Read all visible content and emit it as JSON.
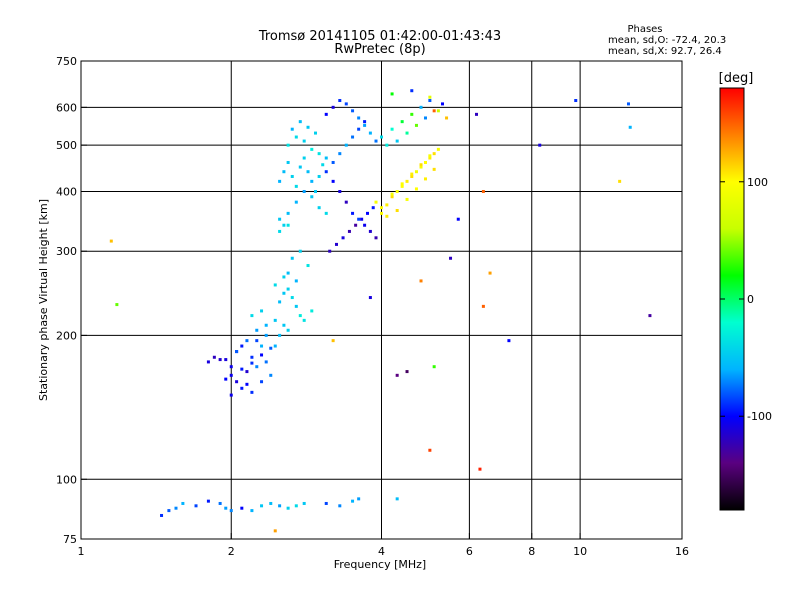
{
  "chart_data": {
    "type": "scatter",
    "title": "Tromsø 20141105 01:42:00-01:43:43",
    "subtitle": "RwPretec (8p)",
    "xlabel": "Frequency [MHz]",
    "ylabel": "Stationary phase Virtual Height [km]",
    "x_scale": "log",
    "y_scale": "log",
    "xlim": [
      1,
      16
    ],
    "ylim": [
      75,
      750
    ],
    "x_ticks": [
      1,
      2,
      4,
      6,
      8,
      10,
      16
    ],
    "y_ticks": [
      75,
      100,
      200,
      300,
      400,
      500,
      600,
      750
    ],
    "grid": true,
    "stats": {
      "heading": "Phases",
      "line_o": "mean, sd,O: -72.4, 20.3",
      "line_x": "mean, sd,X:  92.7, 26.4"
    },
    "colorbar": {
      "label": "[deg]",
      "min": -180,
      "max": 180,
      "ticks": [
        "100",
        "0",
        "-100"
      ],
      "tick_values": [
        100,
        0,
        -100
      ],
      "colors": [
        "#000000",
        "#5a0080",
        "#0000ff",
        "#00b4ff",
        "#00ffd0",
        "#00ff00",
        "#c8ff00",
        "#ffff00",
        "#ff8000",
        "#ff0000"
      ]
    },
    "series": [
      {
        "x": [
          1.95,
          2.0,
          2.05,
          2.1,
          2.15,
          2.2,
          2.25,
          2.3,
          2.35,
          2.4,
          2.0,
          2.05,
          2.1,
          2.15,
          2.2,
          2.25,
          2.3,
          2.35,
          1.9,
          1.85,
          1.8,
          1.95,
          2.0,
          2.1,
          2.2,
          2.3,
          2.4,
          2.45,
          2.5,
          2.55,
          2.6,
          2.05,
          2.15,
          2.25,
          2.35,
          2.45,
          2.2,
          2.3
        ],
        "y": [
          178,
          172,
          185,
          190,
          168,
          175,
          195,
          182,
          176,
          188,
          165,
          160,
          170,
          158,
          180,
          172,
          190,
          200,
          178,
          180,
          176,
          162,
          150,
          155,
          152,
          160,
          165,
          190,
          200,
          210,
          205,
          185,
          195,
          205,
          210,
          215,
          220,
          225
        ],
        "phase": [
          -110,
          -105,
          -100,
          -95,
          -115,
          -90,
          -85,
          -100,
          -75,
          -80,
          -105,
          -110,
          -95,
          -100,
          -90,
          -70,
          -60,
          -65,
          -115,
          -120,
          -110,
          -100,
          -105,
          -95,
          -90,
          -85,
          -70,
          -60,
          -55,
          -50,
          -45,
          -80,
          -75,
          -65,
          -60,
          -50,
          -40,
          -45
        ]
      },
      {
        "x": [
          2.5,
          2.55,
          2.6,
          2.65,
          2.7,
          2.75,
          2.8,
          2.7,
          2.6,
          2.55,
          2.45,
          2.65,
          2.75,
          2.85,
          2.9,
          2.5,
          2.6
        ],
        "y": [
          235,
          245,
          250,
          240,
          230,
          220,
          215,
          260,
          270,
          265,
          255,
          290,
          300,
          280,
          225,
          330,
          340
        ],
        "phase": [
          -55,
          -50,
          -45,
          -40,
          -50,
          -30,
          -35,
          -60,
          -55,
          -45,
          -40,
          -50,
          -45,
          -35,
          -30,
          -40,
          -35
        ]
      },
      {
        "x": [
          2.5,
          2.55,
          2.6,
          2.65,
          2.7,
          2.75,
          2.8,
          2.85,
          2.9,
          2.95,
          3.0,
          3.05,
          3.1,
          2.5,
          2.55,
          2.6,
          2.7,
          2.8,
          2.9,
          3.0,
          3.1,
          2.6,
          2.7,
          2.8,
          2.9,
          3.0,
          2.65,
          2.75,
          2.85,
          2.95
        ],
        "y": [
          420,
          440,
          460,
          430,
          410,
          450,
          470,
          440,
          420,
          400,
          430,
          455,
          470,
          350,
          340,
          360,
          380,
          400,
          390,
          370,
          360,
          500,
          520,
          510,
          490,
          480,
          540,
          560,
          545,
          530
        ],
        "phase": [
          -60,
          -55,
          -50,
          -45,
          -40,
          -50,
          -45,
          -55,
          -60,
          -50,
          -45,
          -40,
          -55,
          -50,
          -45,
          -55,
          -60,
          -65,
          -50,
          -45,
          -40,
          -35,
          -40,
          -45,
          -30,
          -35,
          -60,
          -55,
          -50,
          -45
        ]
      },
      {
        "x": [
          3.1,
          3.2,
          3.3,
          3.4,
          3.5,
          3.6,
          3.7,
          3.8,
          3.9,
          3.2,
          3.3,
          3.4,
          3.5,
          3.6,
          3.7,
          3.1,
          3.2,
          3.3,
          3.4,
          3.5,
          3.6,
          3.7,
          3.8,
          3.9,
          3.15,
          3.25,
          3.35,
          3.45,
          3.55,
          3.65,
          3.75,
          3.85
        ],
        "y": [
          440,
          420,
          400,
          380,
          360,
          350,
          340,
          330,
          320,
          460,
          480,
          500,
          520,
          540,
          560,
          580,
          600,
          620,
          610,
          590,
          570,
          550,
          530,
          510,
          300,
          310,
          320,
          330,
          340,
          350,
          360,
          370
        ],
        "phase": [
          -90,
          -100,
          -110,
          -120,
          -95,
          -85,
          -105,
          -115,
          -125,
          -80,
          -70,
          -60,
          -75,
          -85,
          -95,
          -100,
          -110,
          -90,
          -85,
          -80,
          -70,
          -65,
          -60,
          -75,
          -120,
          -115,
          -110,
          -125,
          -130,
          -105,
          -100,
          -95
        ]
      },
      {
        "x": [
          3.9,
          4.0,
          4.1,
          4.2,
          4.3,
          4.4,
          4.5,
          4.6,
          4.7,
          4.8,
          4.9,
          5.0,
          5.1,
          5.2,
          4.0,
          4.1,
          4.3,
          4.5,
          4.7,
          4.9,
          5.1,
          4.2,
          4.4,
          4.6,
          4.8,
          5.0
        ],
        "y": [
          380,
          370,
          375,
          390,
          400,
          410,
          420,
          430,
          440,
          450,
          460,
          470,
          480,
          490,
          360,
          355,
          365,
          385,
          405,
          425,
          445,
          395,
          415,
          435,
          455,
          475
        ],
        "phase": [
          95,
          100,
          105,
          110,
          95,
          100,
          105,
          110,
          90,
          95,
          100,
          105,
          110,
          95,
          100,
          105,
          110,
          95,
          100,
          105,
          110,
          95,
          100,
          105,
          110,
          95
        ]
      },
      {
        "x": [
          4.0,
          4.2,
          4.4,
          4.6,
          4.8,
          5.0,
          5.2,
          5.4,
          4.1,
          4.3,
          4.5,
          4.7,
          4.9,
          5.1,
          5.3,
          4.2,
          4.6,
          5.0
        ],
        "y": [
          520,
          540,
          560,
          580,
          600,
          620,
          590,
          570,
          500,
          510,
          530,
          550,
          570,
          590,
          610,
          640,
          650,
          630
        ],
        "phase": [
          -40,
          -20,
          10,
          30,
          -60,
          -80,
          60,
          120,
          -30,
          -50,
          -10,
          40,
          -70,
          150,
          -100,
          20,
          -90,
          80
        ]
      },
      {
        "x": [
          1.45,
          1.5,
          1.55,
          1.6,
          1.7,
          1.8,
          1.9,
          1.95,
          2.0,
          2.1,
          2.2,
          2.3,
          2.4,
          2.5,
          2.6,
          2.7,
          2.8,
          3.1,
          3.3,
          3.5,
          3.6,
          4.3,
          2.45
        ],
        "y": [
          84,
          86,
          87,
          89,
          88,
          90,
          89,
          87,
          86,
          87,
          86,
          88,
          89,
          88,
          87,
          88,
          89,
          89,
          88,
          90,
          91,
          91,
          78
        ],
        "phase": [
          -90,
          -80,
          -70,
          -60,
          -85,
          -95,
          -75,
          -65,
          -70,
          -100,
          -60,
          -50,
          -55,
          -65,
          -45,
          -40,
          -50,
          -85,
          -70,
          -60,
          -65,
          -55,
          130
        ]
      },
      {
        "x": [
          6.2,
          6.4,
          6.6,
          7.2,
          8.3,
          9.8,
          12.5,
          12.6,
          13.8,
          1.15,
          1.18,
          5.5,
          6.3,
          5.7,
          5.1,
          4.8,
          4.5,
          3.8,
          3.2,
          12.0,
          6.4,
          5.0,
          4.3
        ],
        "y": [
          580,
          400,
          270,
          195,
          500,
          620,
          610,
          545,
          220,
          315,
          232,
          290,
          105,
          350,
          172,
          260,
          168,
          240,
          195,
          420,
          230,
          115,
          165
        ],
        "phase": [
          -120,
          150,
          130,
          -100,
          -110,
          -90,
          -80,
          -60,
          -130,
          120,
          40,
          -120,
          170,
          -100,
          30,
          140,
          -150,
          -110,
          120,
          110,
          150,
          160,
          -140
        ]
      }
    ]
  }
}
